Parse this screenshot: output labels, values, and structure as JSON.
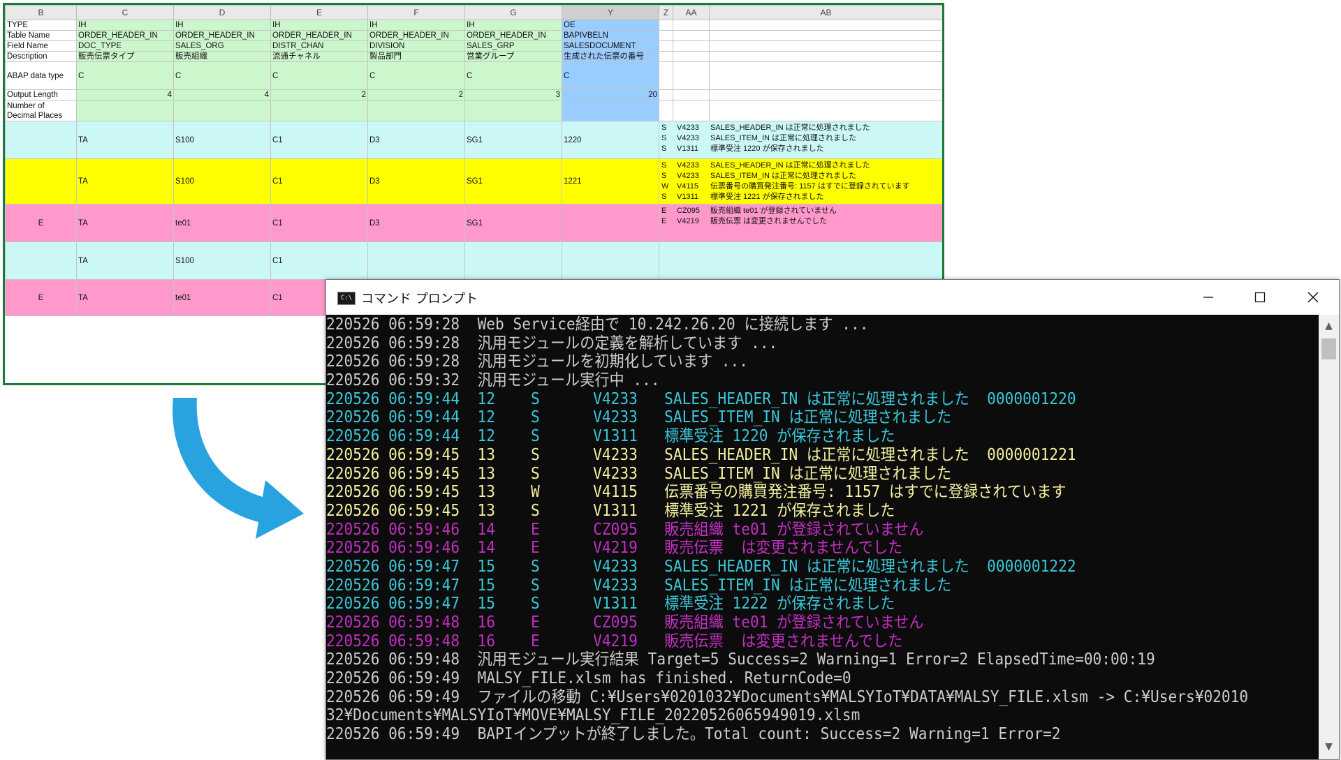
{
  "sheet": {
    "col_headers": [
      "B",
      "C",
      "D",
      "E",
      "F",
      "G",
      "Y",
      "Z",
      "AA",
      "AB"
    ],
    "labels": {
      "type": "TYPE",
      "table_name": "Table Name",
      "field_name": "Field Name",
      "description": "Description",
      "abap_type": "ABAP data type",
      "output_length": "Output Length",
      "decimals": "Number of Decimal Places"
    },
    "meta_cols": [
      {
        "type": "IH",
        "table": "ORDER_HEADER_IN",
        "field": "DOC_TYPE",
        "desc": "販売伝票タイプ",
        "abap": "C",
        "length": "4"
      },
      {
        "type": "IH",
        "table": "ORDER_HEADER_IN",
        "field": "SALES_ORG",
        "desc": "販売組織",
        "abap": "C",
        "length": "4"
      },
      {
        "type": "IH",
        "table": "ORDER_HEADER_IN",
        "field": "DISTR_CHAN",
        "desc": "流通チャネル",
        "abap": "C",
        "length": "2"
      },
      {
        "type": "IH",
        "table": "ORDER_HEADER_IN",
        "field": "DIVISION",
        "desc": "製品部門",
        "abap": "C",
        "length": "2"
      },
      {
        "type": "IH",
        "table": "ORDER_HEADER_IN",
        "field": "SALES_GRP",
        "desc": "営業グループ",
        "abap": "C",
        "length": "3"
      },
      {
        "type": "OE",
        "table": "BAPIVBELN",
        "field": "SALESDOCUMENT",
        "desc": "生成された伝票の番号",
        "abap": "C",
        "length": "20"
      }
    ],
    "data_rows": [
      {
        "b": "",
        "c": "TA",
        "d": "S100",
        "e": "C1",
        "f": "D3",
        "g": "SG1",
        "y": "1220",
        "msgs": [
          {
            "t": "S",
            "code": "V4233",
            "text": "SALES_HEADER_IN は正常に処理されました"
          },
          {
            "t": "S",
            "code": "V4233",
            "text": "SALES_ITEM_IN は正常に処理されました"
          },
          {
            "t": "S",
            "code": "V1311",
            "text": "標準受注 1220 が保存されました"
          }
        ]
      },
      {
        "b": "",
        "c": "TA",
        "d": "S100",
        "e": "C1",
        "f": "D3",
        "g": "SG1",
        "y": "1221",
        "msgs": [
          {
            "t": "S",
            "code": "V4233",
            "text": "SALES_HEADER_IN は正常に処理されました"
          },
          {
            "t": "S",
            "code": "V4233",
            "text": "SALES_ITEM_IN は正常に処理されました"
          },
          {
            "t": "W",
            "code": "V4115",
            "text": "伝票番号の購買発注番号: 1157 はすでに登録されています"
          },
          {
            "t": "S",
            "code": "V1311",
            "text": "標準受注 1221 が保存されました"
          }
        ]
      },
      {
        "b": "E",
        "c": "TA",
        "d": "te01",
        "e": "C1",
        "f": "D3",
        "g": "SG1",
        "y": "",
        "msgs": [
          {
            "t": "E",
            "code": "CZ095",
            "text": "販売組織 te01 が登録されていません"
          },
          {
            "t": "E",
            "code": "V4219",
            "text": "販売伝票  は変更されませんでした"
          }
        ]
      },
      {
        "b": "",
        "c": "TA",
        "d": "S100",
        "e": "C1",
        "f": "",
        "g": "",
        "y": "",
        "msgs": []
      },
      {
        "b": "E",
        "c": "TA",
        "d": "te01",
        "e": "C1",
        "f": "",
        "g": "",
        "y": "",
        "msgs": []
      }
    ]
  },
  "console": {
    "title": "コマンド プロンプト",
    "icon_text": "C:\\",
    "buttons": {
      "minimize": "minimize-icon",
      "maximize": "maximize-icon",
      "close": "close-icon"
    },
    "colors": {
      "white": "#cccccc",
      "cyan": "#3ac8d8",
      "yellow": "#f5f0a0",
      "magenta": "#c030c0"
    },
    "lines": [
      {
        "color": "white",
        "text": "220526 06:59:28  Web Service経由で 10.242.26.20 に接続します ..."
      },
      {
        "color": "white",
        "text": "220526 06:59:28  汎用モジュールの定義を解析しています ..."
      },
      {
        "color": "white",
        "text": "220526 06:59:28  汎用モジュールを初期化しています ..."
      },
      {
        "color": "white",
        "text": "220526 06:59:32  汎用モジュール実行中 ..."
      },
      {
        "color": "cyan",
        "text": "220526 06:59:44  12    S      V4233   SALES_HEADER_IN は正常に処理されました  0000001220"
      },
      {
        "color": "cyan",
        "text": "220526 06:59:44  12    S      V4233   SALES_ITEM_IN は正常に処理されました"
      },
      {
        "color": "cyan",
        "text": "220526 06:59:44  12    S      V1311   標準受注 1220 が保存されました"
      },
      {
        "color": "yellow",
        "text": "220526 06:59:45  13    S      V4233   SALES_HEADER_IN は正常に処理されました  0000001221"
      },
      {
        "color": "yellow",
        "text": "220526 06:59:45  13    S      V4233   SALES_ITEM_IN は正常に処理されました"
      },
      {
        "color": "yellow",
        "text": "220526 06:59:45  13    W      V4115   伝票番号の購買発注番号: 1157 はすでに登録されています"
      },
      {
        "color": "yellow",
        "text": "220526 06:59:45  13    S      V1311   標準受注 1221 が保存されました"
      },
      {
        "color": "magenta",
        "text": "220526 06:59:46  14    E      CZ095   販売組織 te01 が登録されていません"
      },
      {
        "color": "magenta",
        "text": "220526 06:59:46  14    E      V4219   販売伝票  は変更されませんでした"
      },
      {
        "color": "cyan",
        "text": "220526 06:59:47  15    S      V4233   SALES_HEADER_IN は正常に処理されました  0000001222"
      },
      {
        "color": "cyan",
        "text": "220526 06:59:47  15    S      V4233   SALES_ITEM_IN は正常に処理されました"
      },
      {
        "color": "cyan",
        "text": "220526 06:59:47  15    S      V1311   標準受注 1222 が保存されました"
      },
      {
        "color": "magenta",
        "text": "220526 06:59:48  16    E      CZ095   販売組織 te01 が登録されていません"
      },
      {
        "color": "magenta",
        "text": "220526 06:59:48  16    E      V4219   販売伝票  は変更されませんでした"
      },
      {
        "color": "white",
        "text": "220526 06:59:48  汎用モジュール実行結果 Target=5 Success=2 Warning=1 Error=2 ElapsedTime=00:00:19"
      },
      {
        "color": "white",
        "text": "220526 06:59:49  MALSY_FILE.xlsm has finished. ReturnCode=0"
      },
      {
        "color": "white",
        "text": "220526 06:59:49  ファイルの移動 C:¥Users¥0201032¥Documents¥MALSYIoT¥DATA¥MALSY_FILE.xlsm -> C:¥Users¥02010"
      },
      {
        "color": "white",
        "text": "32¥Documents¥MALSYIoT¥MOVE¥MALSY_FILE_20220526065949019.xlsm"
      },
      {
        "color": "white",
        "text": "220526 06:59:49  BAPIインプットが終了しました。Total count: Success=2 Warning=1 Error=2"
      }
    ]
  }
}
